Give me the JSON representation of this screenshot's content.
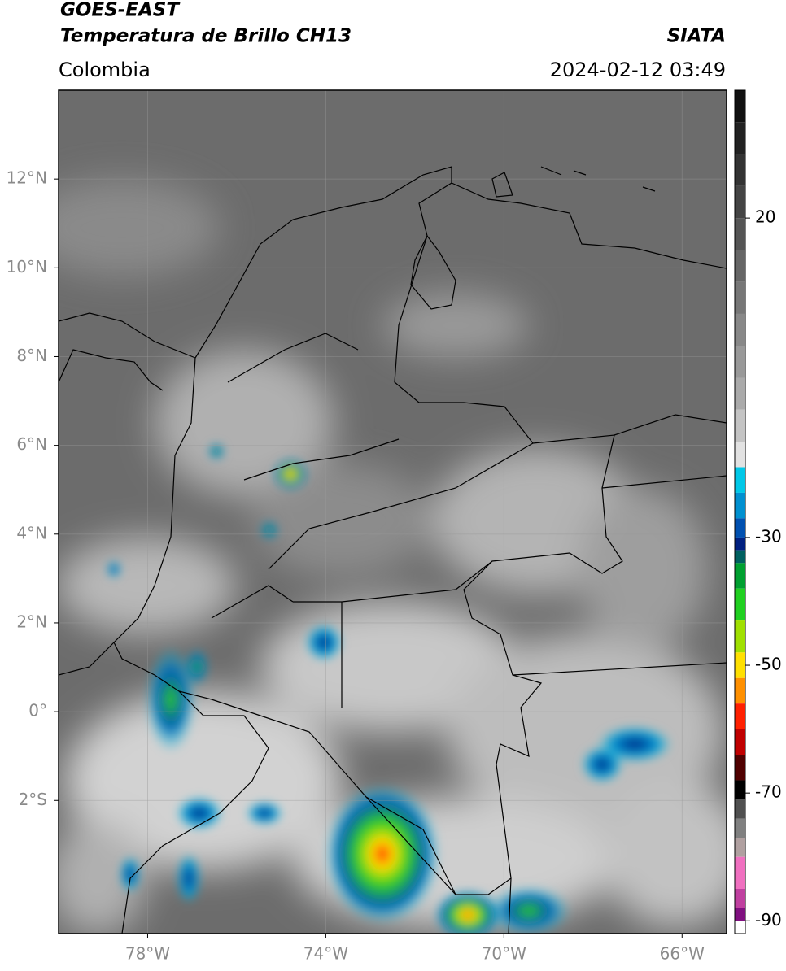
{
  "map": {
    "title": "GOES-EAST",
    "subtitle": "Temperatura de Brillo CH13",
    "source": "SIATA",
    "region": "Colombia",
    "datetime": "2024-02-12 03:49",
    "xlim": [
      -80,
      -65
    ],
    "ylim": [
      -5,
      14
    ],
    "xticks": [
      {
        "value": -78,
        "label": "78°W"
      },
      {
        "value": -74,
        "label": "74°W"
      },
      {
        "value": -70,
        "label": "70°W"
      },
      {
        "value": -66,
        "label": "66°W"
      }
    ],
    "yticks": [
      {
        "value": 12,
        "label": "12°N"
      },
      {
        "value": 10,
        "label": "10°N"
      },
      {
        "value": 8,
        "label": "8°N"
      },
      {
        "value": 6,
        "label": "6°N"
      },
      {
        "value": 4,
        "label": "4°N"
      },
      {
        "value": 2,
        "label": "2°N"
      },
      {
        "value": 0,
        "label": "0°"
      },
      {
        "value": -2,
        "label": "2°S"
      }
    ],
    "grid": true,
    "colorbar": {
      "lim": [
        -92,
        40
      ],
      "ticks": [
        20,
        -30,
        -50,
        -70,
        -90
      ],
      "colors": [
        {
          "value": 40,
          "color": "#111111"
        },
        {
          "value": 35,
          "color": "#222222"
        },
        {
          "value": 30,
          "color": "#333333"
        },
        {
          "value": 25,
          "color": "#444444"
        },
        {
          "value": 20,
          "color": "#555555"
        },
        {
          "value": 15,
          "color": "#666666"
        },
        {
          "value": 10,
          "color": "#777777"
        },
        {
          "value": 5,
          "color": "#888888"
        },
        {
          "value": 0,
          "color": "#999999"
        },
        {
          "value": -5,
          "color": "#aaaaaa"
        },
        {
          "value": -10,
          "color": "#c4c4c4"
        },
        {
          "value": -15,
          "color": "#e2e2e2"
        },
        {
          "value": -19,
          "color": "#00c8e8"
        },
        {
          "value": -23,
          "color": "#0090d0"
        },
        {
          "value": -27,
          "color": "#0050b0"
        },
        {
          "value": -30,
          "color": "#002080"
        },
        {
          "value": -32,
          "color": "#006060"
        },
        {
          "value": -34,
          "color": "#00a030"
        },
        {
          "value": -38,
          "color": "#20d020"
        },
        {
          "value": -43,
          "color": "#a0e000"
        },
        {
          "value": -48,
          "color": "#ffe000"
        },
        {
          "value": -52,
          "color": "#ff9000"
        },
        {
          "value": -56,
          "color": "#ff2000"
        },
        {
          "value": -60,
          "color": "#c00000"
        },
        {
          "value": -64,
          "color": "#500000"
        },
        {
          "value": -68,
          "color": "#000000"
        },
        {
          "value": -71,
          "color": "#505050"
        },
        {
          "value": -74,
          "color": "#808080"
        },
        {
          "value": -77,
          "color": "#b0a0a0"
        },
        {
          "value": -80,
          "color": "#f070c0"
        },
        {
          "value": -85,
          "color": "#c040a0"
        },
        {
          "value": -88,
          "color": "#801080"
        },
        {
          "value": -90,
          "color": "#ffffff"
        }
      ]
    }
  }
}
